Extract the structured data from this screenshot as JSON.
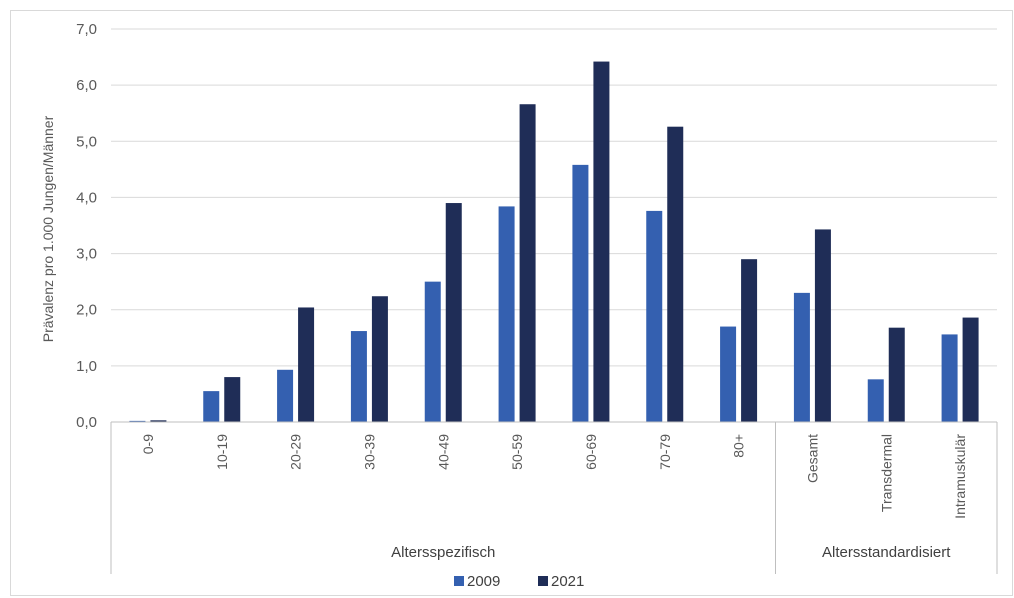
{
  "chart_data": {
    "type": "bar",
    "ylabel": "Prävalenz pro 1.000 Jungen/Männer",
    "xlabel": "",
    "ylim": [
      0,
      7
    ],
    "y_ticks": [
      "0,0",
      "1,0",
      "2,0",
      "3,0",
      "4,0",
      "5,0",
      "6,0",
      "7,0"
    ],
    "grid": true,
    "legend_position": "bottom",
    "categories": [
      "0-9",
      "10-19",
      "20-29",
      "30-39",
      "40-49",
      "50-59",
      "60-69",
      "70-79",
      "80+",
      "Gesamt",
      "Transdermal",
      "Intramuskulär"
    ],
    "groups": [
      {
        "label": "Altersspezifisch",
        "count": 9
      },
      {
        "label": "Altersstandardisiert",
        "count": 3
      }
    ],
    "series": [
      {
        "name": "2009",
        "color": "#3460b0",
        "values": [
          0.02,
          0.55,
          0.93,
          1.62,
          2.5,
          3.84,
          4.58,
          3.76,
          1.7,
          2.3,
          0.76,
          1.56
        ]
      },
      {
        "name": "2021",
        "color": "#1f2d57",
        "values": [
          0.03,
          0.8,
          2.04,
          2.24,
          3.9,
          5.66,
          6.42,
          5.26,
          2.9,
          3.43,
          1.68,
          1.86
        ]
      }
    ]
  }
}
